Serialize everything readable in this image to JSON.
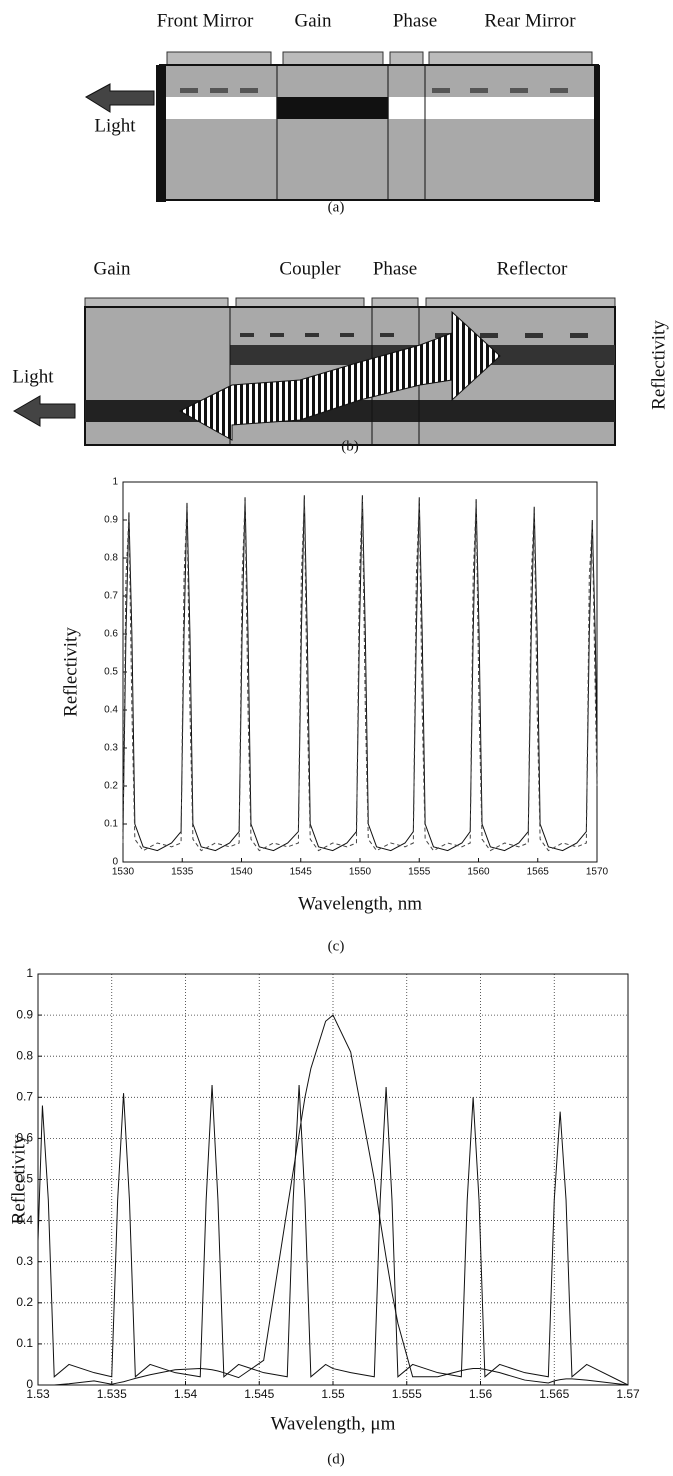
{
  "diagram_a": {
    "sections": [
      "Front Mirror",
      "Gain",
      "Phase",
      "Rear Mirror"
    ],
    "light_label": "Light",
    "caption": "(a)"
  },
  "diagram_b": {
    "sections": [
      "Gain",
      "Coupler",
      "Phase",
      "Reflector"
    ],
    "light_label": "Light",
    "side_label": "Reflectivity",
    "caption": "(b)"
  },
  "chart_data": [
    {
      "type": "line",
      "xlabel": "Wavelength, nm",
      "ylabel": "Reflectivity",
      "caption": "(c)",
      "grid": false,
      "xlim": [
        1530,
        1570
      ],
      "ylim": [
        0,
        1
      ],
      "xticks": [
        1530,
        1535,
        1540,
        1545,
        1550,
        1555,
        1560,
        1565,
        1570
      ],
      "yticks": [
        0,
        0.1,
        0.2,
        0.3,
        0.4,
        0.5,
        0.6,
        0.7,
        0.8,
        0.9,
        1
      ],
      "x": [
        1530.0,
        1530.25,
        1530.5,
        1530.75,
        1531.0,
        1531.7,
        1532.9,
        1534.1,
        1534.9,
        1535.15,
        1535.4,
        1535.65,
        1535.9,
        1536.6,
        1537.8,
        1539.0,
        1539.8,
        1540.05,
        1540.3,
        1540.55,
        1540.8,
        1541.5,
        1542.7,
        1543.9,
        1544.8,
        1545.05,
        1545.3,
        1545.55,
        1545.8,
        1546.5,
        1547.7,
        1548.9,
        1549.7,
        1549.95,
        1550.2,
        1550.45,
        1550.7,
        1551.4,
        1552.6,
        1553.8,
        1554.5,
        1554.75,
        1555.0,
        1555.25,
        1555.5,
        1556.2,
        1557.4,
        1558.6,
        1559.3,
        1559.55,
        1559.8,
        1560.05,
        1560.3,
        1561.0,
        1562.2,
        1563.4,
        1564.2,
        1564.45,
        1564.7,
        1564.95,
        1565.2,
        1565.9,
        1567.1,
        1568.3,
        1569.1,
        1569.35,
        1569.6,
        1569.85,
        1570.0
      ],
      "series": [
        {
          "color": "#111111",
          "line_style": "solid",
          "values": [
            0.08,
            0.6,
            0.92,
            0.6,
            0.1,
            0.04,
            0.03,
            0.05,
            0.08,
            0.6,
            0.945,
            0.6,
            0.1,
            0.04,
            0.03,
            0.05,
            0.08,
            0.6,
            0.96,
            0.6,
            0.1,
            0.04,
            0.03,
            0.05,
            0.08,
            0.6,
            0.965,
            0.6,
            0.1,
            0.04,
            0.03,
            0.05,
            0.08,
            0.6,
            0.965,
            0.6,
            0.1,
            0.04,
            0.03,
            0.05,
            0.08,
            0.6,
            0.96,
            0.6,
            0.1,
            0.04,
            0.03,
            0.05,
            0.08,
            0.6,
            0.955,
            0.6,
            0.1,
            0.04,
            0.03,
            0.05,
            0.08,
            0.6,
            0.935,
            0.6,
            0.1,
            0.04,
            0.03,
            0.05,
            0.08,
            0.6,
            0.9,
            0.6,
            0.3
          ]
        },
        {
          "color": "#444444",
          "line_style": "dashed",
          "values": [
            0.05,
            0.75,
            0.91,
            0.4,
            0.06,
            0.03,
            0.05,
            0.04,
            0.05,
            0.75,
            0.935,
            0.4,
            0.06,
            0.03,
            0.05,
            0.04,
            0.05,
            0.75,
            0.95,
            0.4,
            0.06,
            0.03,
            0.05,
            0.04,
            0.05,
            0.75,
            0.955,
            0.4,
            0.06,
            0.03,
            0.05,
            0.04,
            0.05,
            0.75,
            0.955,
            0.4,
            0.06,
            0.03,
            0.05,
            0.04,
            0.05,
            0.75,
            0.95,
            0.4,
            0.06,
            0.03,
            0.05,
            0.04,
            0.05,
            0.75,
            0.945,
            0.4,
            0.06,
            0.03,
            0.05,
            0.04,
            0.05,
            0.75,
            0.925,
            0.4,
            0.06,
            0.03,
            0.05,
            0.04,
            0.05,
            0.75,
            0.89,
            0.45,
            0.2
          ]
        }
      ]
    },
    {
      "type": "line",
      "xlabel": "Wavelength, μm",
      "ylabel": "Reflectivity",
      "caption": "(d)",
      "grid": true,
      "xlim": [
        1.53,
        1.57
      ],
      "ylim": [
        0,
        1
      ],
      "xticks": [
        1.53,
        1.535,
        1.54,
        1.545,
        1.55,
        1.555,
        1.56,
        1.565,
        1.57
      ],
      "yticks": [
        0,
        0.1,
        0.2,
        0.3,
        0.4,
        0.5,
        0.6,
        0.7,
        0.8,
        0.9,
        1
      ],
      "x": [
        1.53,
        1.5303,
        1.5307,
        1.5311,
        1.5321,
        1.5338,
        1.535,
        1.5354,
        1.5358,
        1.5362,
        1.5366,
        1.5376,
        1.5393,
        1.541,
        1.5414,
        1.5418,
        1.5422,
        1.5426,
        1.5436,
        1.5453,
        1.5469,
        1.5473,
        1.5477,
        1.5481,
        1.5485,
        1.5495,
        1.55,
        1.5512,
        1.5528,
        1.5532,
        1.5536,
        1.554,
        1.5544,
        1.5554,
        1.5571,
        1.5587,
        1.5591,
        1.5595,
        1.5599,
        1.5603,
        1.5613,
        1.563,
        1.5646,
        1.565,
        1.5654,
        1.5658,
        1.5662,
        1.5672,
        1.57
      ],
      "series": [
        {
          "color": "#111111",
          "line_style": "solid",
          "values": [
            0.35,
            0.68,
            0.45,
            0.02,
            0.05,
            0.03,
            0.02,
            0.45,
            0.71,
            0.45,
            0.02,
            0.05,
            0.03,
            0.02,
            0.45,
            0.73,
            0.45,
            0.02,
            0.05,
            0.03,
            0.02,
            0.45,
            0.73,
            0.45,
            0.02,
            0.05,
            0.04,
            0.03,
            0.02,
            0.45,
            0.725,
            0.45,
            0.02,
            0.05,
            0.03,
            0.02,
            0.45,
            0.7,
            0.45,
            0.02,
            0.05,
            0.03,
            0.02,
            0.45,
            0.665,
            0.45,
            0.02,
            0.05,
            0.0
          ]
        },
        {
          "color": "#111111",
          "line_style": "solid",
          "values": [
            0,
            0,
            0,
            0,
            0.003,
            0.01,
            0.002,
            0.005,
            0.008,
            0.012,
            0.016,
            0.025,
            0.037,
            0.04,
            0.039,
            0.037,
            0.034,
            0.03,
            0.018,
            0.06,
            0.43,
            0.52,
            0.61,
            0.7,
            0.77,
            0.885,
            0.9,
            0.81,
            0.5,
            0.4,
            0.31,
            0.225,
            0.15,
            0.02,
            0.02,
            0.035,
            0.038,
            0.04,
            0.04,
            0.038,
            0.03,
            0.012,
            0.005,
            0.01,
            0.013,
            0.015,
            0.015,
            0.012,
            0.0
          ]
        }
      ]
    }
  ]
}
